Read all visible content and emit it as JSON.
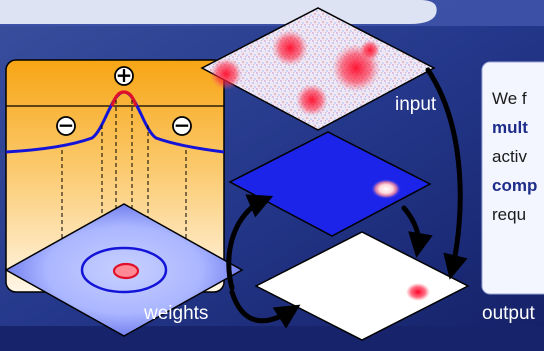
{
  "labels": {
    "input": "input",
    "weights": "weights",
    "output": "output"
  },
  "profile_signs": {
    "center": "+",
    "left": "−",
    "right": "−"
  },
  "text_panel": {
    "line1": "We f",
    "line2": "mult",
    "line3": "activ",
    "line4": "comp",
    "line5": "requ"
  },
  "colors": {
    "background": "#1b2a6b",
    "accent_blue": "#1424e0",
    "activation_red": "#e0102a",
    "panel_gold": "#f7b21a"
  }
}
